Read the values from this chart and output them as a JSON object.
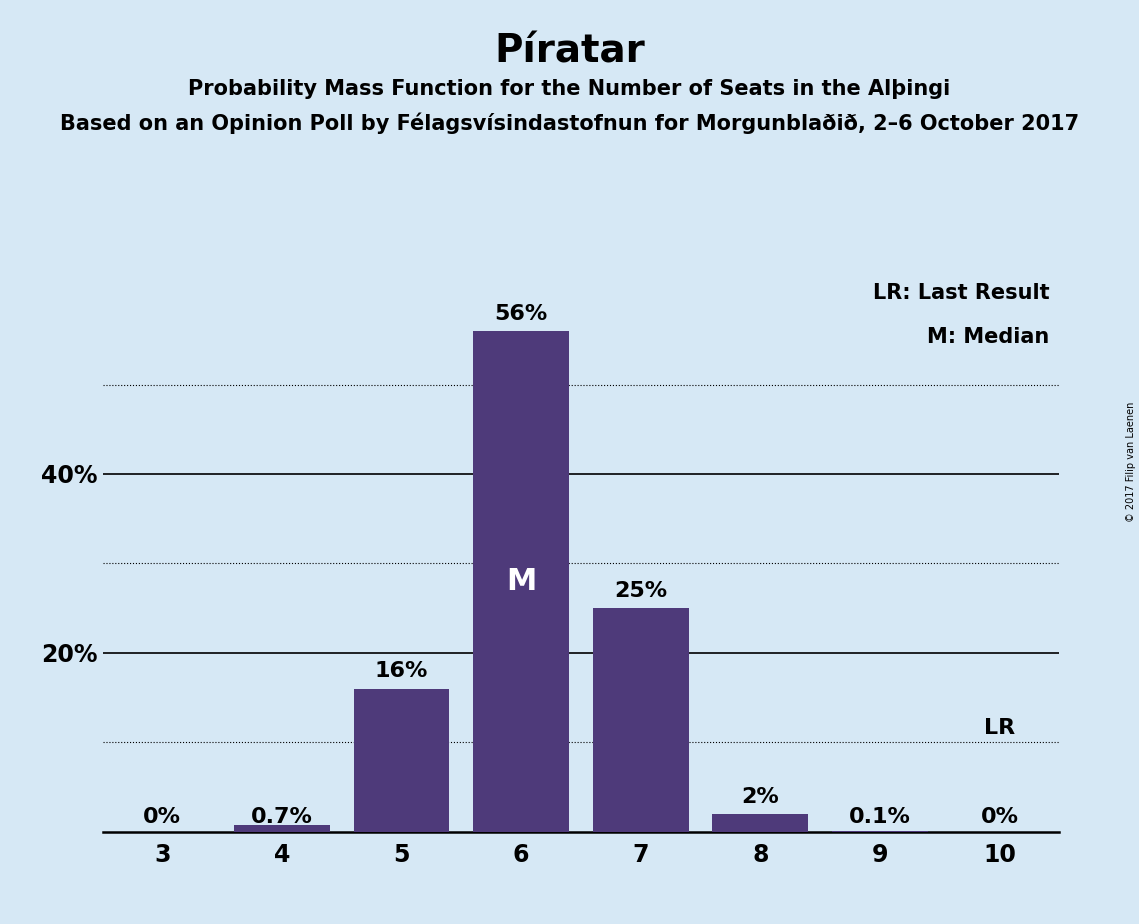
{
  "title": "Píratar",
  "subtitle1": "Probability Mass Function for the Number of Seats in the Alþingi",
  "subtitle2": "Based on an Opinion Poll by Félagsvísindastofnun for Morgunblaðið, 2–6 October 2017",
  "copyright": "© 2017 Filip van Laenen",
  "seats": [
    3,
    4,
    5,
    6,
    7,
    8,
    9,
    10
  ],
  "values": [
    0.0,
    0.7,
    16.0,
    56.0,
    25.0,
    2.0,
    0.1,
    0.0
  ],
  "labels": [
    "0%",
    "0.7%",
    "16%",
    "56%",
    "25%",
    "2%",
    "0.1%",
    "0%"
  ],
  "bar_color": "#4e3a7a",
  "background_color": "#d6e8f5",
  "median_seat": 6,
  "lr_seat": 10,
  "lr_label": "LR",
  "median_label": "M",
  "legend_lr": "LR: Last Result",
  "legend_m": "M: Median",
  "solid_gridlines": [
    20,
    40
  ],
  "dotted_gridlines": [
    10,
    30,
    50
  ],
  "ytick_positions": [
    20,
    40
  ],
  "ytick_labels": [
    "20%",
    "40%"
  ],
  "ylim": [
    0,
    62
  ],
  "title_fontsize": 28,
  "subtitle_fontsize": 15,
  "label_fontsize": 16,
  "tick_fontsize": 17,
  "legend_fontsize": 15,
  "median_label_fontsize": 22
}
